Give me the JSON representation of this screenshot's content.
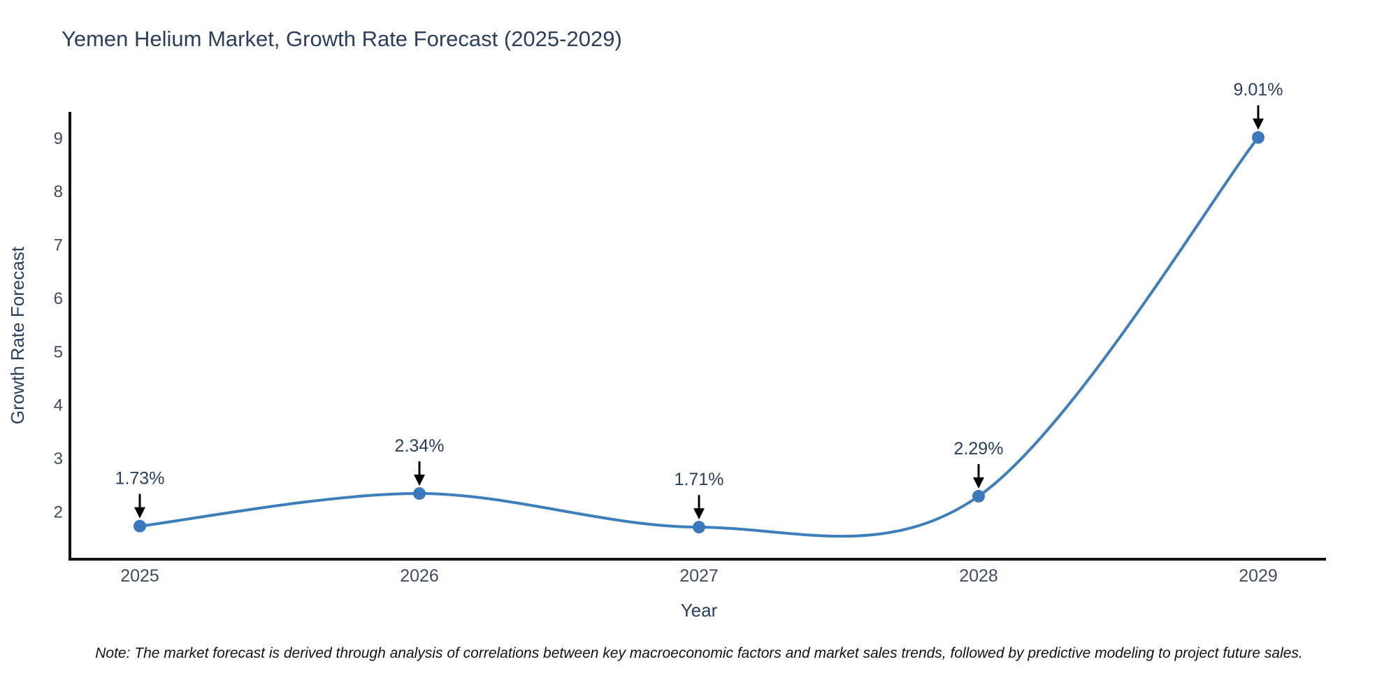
{
  "title": "Yemen Helium Market, Growth Rate Forecast (2025-2029)",
  "note": "Note: The market forecast is derived through analysis of correlations between key macroeconomic factors and market sales trends, followed by predictive modeling to project future sales.",
  "chart_data": {
    "type": "line",
    "title": "Yemen Helium Market, Growth Rate Forecast (2025-2029)",
    "xlabel": "Year",
    "ylabel": "Growth Rate Forecast",
    "x": [
      2025,
      2026,
      2027,
      2028,
      2029
    ],
    "values": [
      1.73,
      2.34,
      1.71,
      2.29,
      9.01
    ],
    "point_labels": [
      "1.73%",
      "2.34%",
      "1.71%",
      "2.29%",
      "9.01%"
    ],
    "yticks": [
      2,
      3,
      4,
      5,
      6,
      7,
      8,
      9
    ],
    "xlim": [
      2024.75,
      2029.2425
    ],
    "ylim": [
      1.11,
      9.49
    ],
    "grid": false,
    "legend_position": "none",
    "line_shape": "spline",
    "marker": "circle",
    "annotation_arrow": "down-arrow",
    "colors": {
      "line": "#3d7ebd",
      "marker": "#3a7abc",
      "axis": "#111111",
      "title_text": "#2a3f5f",
      "axis_title_text": "#2a3f5f",
      "tick_text": "#424c5e",
      "annotation_text": "#2a3f5f",
      "arrow": "#000000",
      "note_text": "#111111",
      "background": "#ffffff"
    }
  }
}
